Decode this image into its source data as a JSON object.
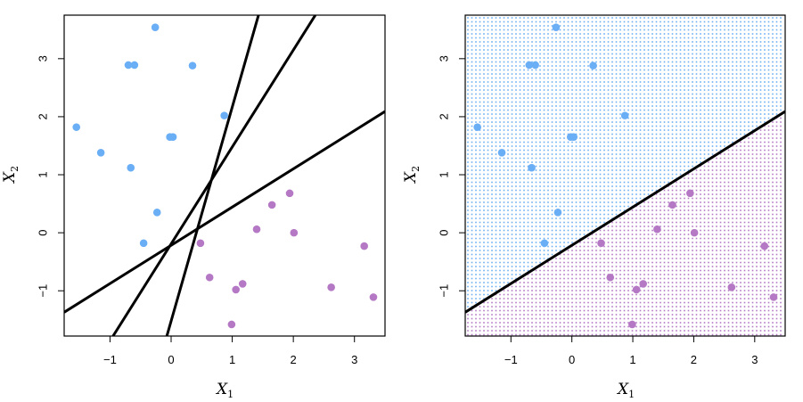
{
  "chart_data": [
    {
      "type": "scatter",
      "panel": "left",
      "title": "",
      "xlabel": "X1",
      "ylabel": "X2",
      "xlim": [
        -1.75,
        3.5
      ],
      "ylim": [
        -1.78,
        3.75
      ],
      "xticks": [
        -1,
        0,
        1,
        2,
        3
      ],
      "yticks": [
        -1,
        0,
        1,
        2,
        3
      ],
      "xtick_labels": [
        "−1",
        "0",
        "1",
        "2",
        "3"
      ],
      "ytick_labels": [
        "−1",
        "0",
        "1",
        "2",
        "3"
      ],
      "grid": false,
      "legend": null,
      "series": [
        {
          "name": "class-blue",
          "color": "#6aaef5",
          "points": [
            [
              -0.26,
              3.54
            ],
            [
              -0.7,
              2.89
            ],
            [
              -0.6,
              2.89
            ],
            [
              0.35,
              2.88
            ],
            [
              0.87,
              2.02
            ],
            [
              -1.55,
              1.82
            ],
            [
              -0.02,
              1.65
            ],
            [
              0.03,
              1.65
            ],
            [
              -1.15,
              1.38
            ],
            [
              -0.66,
              1.12
            ],
            [
              -0.23,
              0.35
            ],
            [
              -0.45,
              -0.18
            ]
          ]
        },
        {
          "name": "class-purple",
          "color": "#b478c4",
          "points": [
            [
              0.48,
              -0.18
            ],
            [
              0.63,
              -0.77
            ],
            [
              1.06,
              -0.98
            ],
            [
              1.17,
              -0.88
            ],
            [
              0.99,
              -1.58
            ],
            [
              1.4,
              0.06
            ],
            [
              1.65,
              0.48
            ],
            [
              1.94,
              0.68
            ],
            [
              2.01,
              0.0
            ],
            [
              2.62,
              -0.94
            ],
            [
              3.16,
              -0.23
            ],
            [
              3.31,
              -1.11
            ]
          ]
        }
      ],
      "lines": [
        {
          "name": "hyperplane-1",
          "color": "#000000",
          "p1": [
            -1.75,
            -1.37
          ],
          "p2": [
            3.5,
            2.09
          ]
        },
        {
          "name": "hyperplane-2",
          "color": "#000000",
          "p1": [
            -0.95,
            -1.78
          ],
          "p2": [
            2.36,
            3.75
          ]
        },
        {
          "name": "hyperplane-3",
          "color": "#000000",
          "p1": [
            -0.07,
            -1.78
          ],
          "p2": [
            1.43,
            3.75
          ]
        }
      ]
    },
    {
      "type": "scatter",
      "panel": "right",
      "title": "",
      "xlabel": "X1",
      "ylabel": "X2",
      "xlim": [
        -1.75,
        3.5
      ],
      "ylim": [
        -1.78,
        3.75
      ],
      "xticks": [
        -1,
        0,
        1,
        2,
        3
      ],
      "yticks": [
        -1,
        0,
        1,
        2,
        3
      ],
      "xtick_labels": [
        "−1",
        "0",
        "1",
        "2",
        "3"
      ],
      "ytick_labels": [
        "−1",
        "0",
        "1",
        "2",
        "3"
      ],
      "grid": false,
      "legend": null,
      "background_grid": {
        "description": "classification region shown as dense dot grid",
        "above_line_color": "#6aaef5",
        "below_line_color": "#b478c4",
        "spacing_px": 4.5
      },
      "series": [
        {
          "name": "class-blue",
          "color": "#6aaef5",
          "points": [
            [
              -0.26,
              3.54
            ],
            [
              -0.7,
              2.89
            ],
            [
              -0.6,
              2.89
            ],
            [
              0.35,
              2.88
            ],
            [
              0.87,
              2.02
            ],
            [
              -1.55,
              1.82
            ],
            [
              -0.02,
              1.65
            ],
            [
              0.03,
              1.65
            ],
            [
              -1.15,
              1.38
            ],
            [
              -0.66,
              1.12
            ],
            [
              -0.23,
              0.35
            ],
            [
              -0.45,
              -0.18
            ]
          ]
        },
        {
          "name": "class-purple",
          "color": "#b478c4",
          "points": [
            [
              0.48,
              -0.18
            ],
            [
              0.63,
              -0.77
            ],
            [
              1.06,
              -0.98
            ],
            [
              1.17,
              -0.88
            ],
            [
              0.99,
              -1.58
            ],
            [
              1.4,
              0.06
            ],
            [
              1.65,
              0.48
            ],
            [
              1.94,
              0.68
            ],
            [
              2.01,
              0.0
            ],
            [
              2.62,
              -0.94
            ],
            [
              3.16,
              -0.23
            ],
            [
              3.31,
              -1.11
            ]
          ]
        }
      ],
      "lines": [
        {
          "name": "separating-hyperplane",
          "color": "#000000",
          "p1": [
            -1.75,
            -1.37
          ],
          "p2": [
            3.5,
            2.09
          ]
        }
      ]
    }
  ],
  "labels": {
    "x_main": "X",
    "x_sub": "1",
    "y_main": "X",
    "y_sub": "2"
  }
}
